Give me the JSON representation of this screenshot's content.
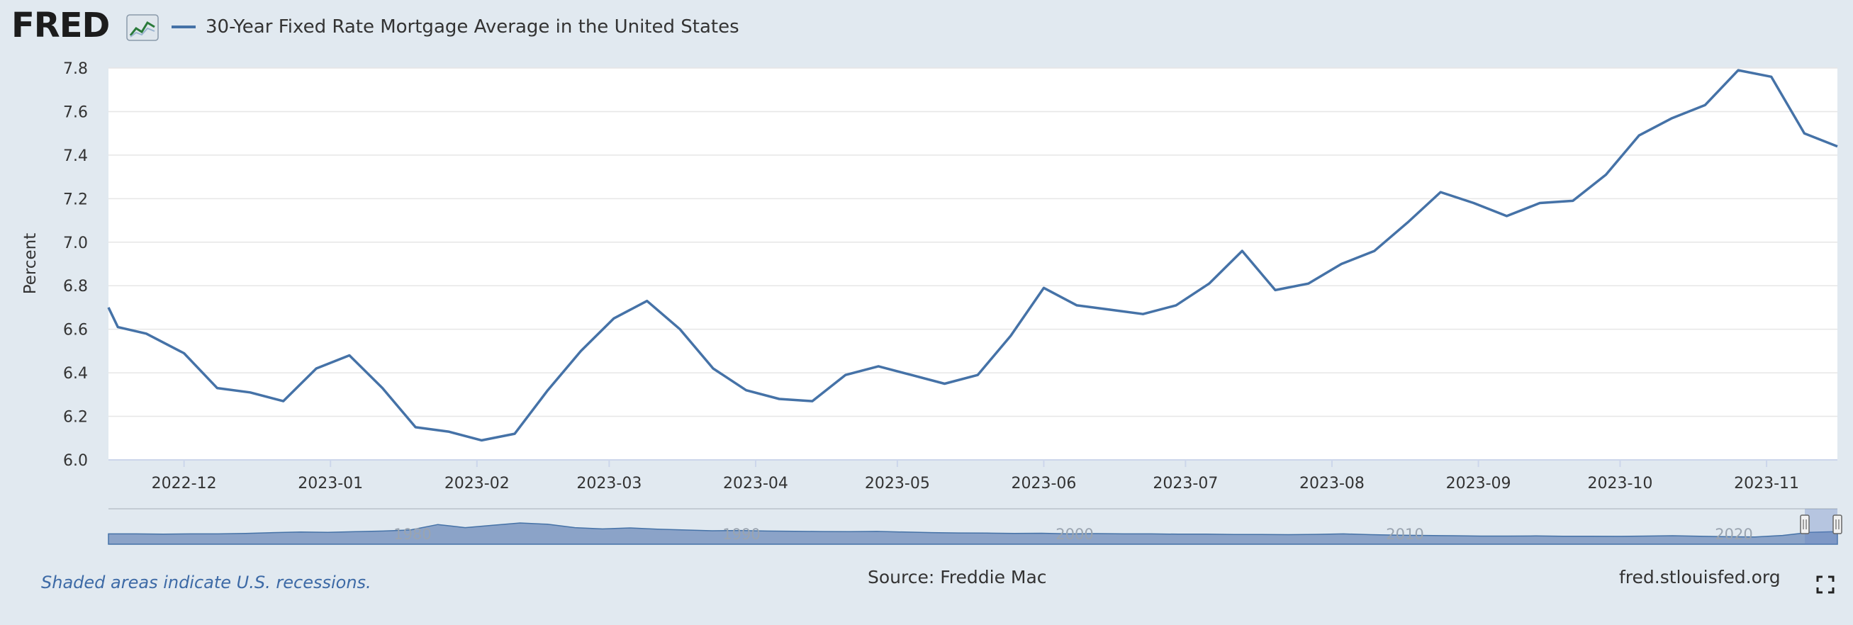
{
  "header": {
    "logo_text": "FRED",
    "logo_icon": "fred-chart-logo-icon",
    "legend_label": "30-Year Fixed Rate Mortgage Average in the United States"
  },
  "footer": {
    "recession_note": "Shaded areas indicate U.S. recessions.",
    "source": "Source: Freddie Mac",
    "site": "fred.stlouisfed.org",
    "fullscreen_icon": "fullscreen-icon"
  },
  "navigator": {
    "labels": [
      "1980",
      "1990",
      "2000",
      "2010",
      "2020"
    ]
  },
  "colors": {
    "series": "#4572a7",
    "background": "#e1e9f0",
    "plot_bg": "#ffffff",
    "grid": "#e6e6e6",
    "navigator_fill": "#8ba3c8"
  },
  "chart_data": {
    "type": "line",
    "title": "",
    "xlabel": "",
    "ylabel": "Percent",
    "ylim": [
      6.0,
      7.8
    ],
    "yticks": [
      "6.0",
      "6.2",
      "6.4",
      "6.6",
      "6.8",
      "7.0",
      "7.2",
      "7.4",
      "7.6",
      "7.8"
    ],
    "xticks": [
      "2022-12",
      "2023-01",
      "2023-02",
      "2023-03",
      "2023-04",
      "2023-05",
      "2023-06",
      "2023-07",
      "2023-08",
      "2023-09",
      "2023-10",
      "2023-11"
    ],
    "grid": true,
    "legend": "top-left",
    "series": [
      {
        "name": "30-Year Fixed Rate Mortgage Average in the United States",
        "x": [
          "2022-11-17",
          "2022-11-23",
          "2022-12-01",
          "2022-12-08",
          "2022-12-15",
          "2022-12-22",
          "2022-12-29",
          "2023-01-05",
          "2023-01-12",
          "2023-01-19",
          "2023-01-26",
          "2023-02-02",
          "2023-02-09",
          "2023-02-16",
          "2023-02-23",
          "2023-03-02",
          "2023-03-09",
          "2023-03-16",
          "2023-03-23",
          "2023-03-30",
          "2023-04-06",
          "2023-04-13",
          "2023-04-20",
          "2023-04-27",
          "2023-05-04",
          "2023-05-11",
          "2023-05-18",
          "2023-05-25",
          "2023-06-01",
          "2023-06-08",
          "2023-06-15",
          "2023-06-22",
          "2023-06-29",
          "2023-07-06",
          "2023-07-13",
          "2023-07-20",
          "2023-07-27",
          "2023-08-03",
          "2023-08-10",
          "2023-08-17",
          "2023-08-24",
          "2023-08-31",
          "2023-09-07",
          "2023-09-14",
          "2023-09-21",
          "2023-09-28",
          "2023-10-05",
          "2023-10-12",
          "2023-10-19",
          "2023-10-26",
          "2023-11-02",
          "2023-11-09",
          "2023-11-16"
        ],
        "values": [
          6.61,
          6.58,
          6.49,
          6.33,
          6.31,
          6.27,
          6.42,
          6.48,
          6.33,
          6.15,
          6.13,
          6.09,
          6.12,
          6.32,
          6.5,
          6.65,
          6.73,
          6.6,
          6.42,
          6.32,
          6.28,
          6.27,
          6.39,
          6.43,
          6.39,
          6.35,
          6.39,
          6.57,
          6.79,
          6.71,
          6.69,
          6.67,
          6.71,
          6.81,
          6.96,
          6.78,
          6.81,
          6.9,
          6.96,
          7.09,
          7.23,
          7.18,
          7.12,
          7.18,
          7.19,
          7.31,
          7.49,
          7.57,
          7.63,
          7.79,
          7.76,
          7.5,
          7.44
        ]
      }
    ]
  }
}
